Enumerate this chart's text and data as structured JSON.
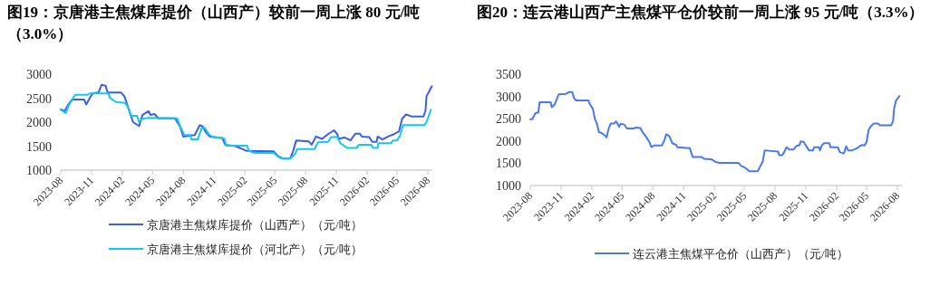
{
  "chart_data": [
    {
      "type": "line",
      "title": "图19：京唐港主焦煤库提价（山西产）较前一周上涨 80 元/吨（3.0%）",
      "legend": "bottom",
      "xlim": [
        "2023-08-01",
        "2026-08-15"
      ],
      "ylim": [
        1000,
        3000
      ],
      "xticks": [
        {
          "value": "2023-08",
          "label": "2023-08"
        },
        {
          "value": "2023-11",
          "label": "2023-11"
        },
        {
          "value": "2024-02",
          "label": "2024-02"
        },
        {
          "value": "2024-05",
          "label": "2024-05"
        },
        {
          "value": "2024-08",
          "label": "2024-08"
        },
        {
          "value": "2024-11",
          "label": "2024-11"
        },
        {
          "value": "2025-02",
          "label": "2025-02"
        },
        {
          "value": "2025-05",
          "label": "2025-05"
        },
        {
          "value": "2025-08",
          "label": "2025-08"
        },
        {
          "value": "2025-11",
          "label": "2025-11"
        },
        {
          "value": "2026-02",
          "label": "2026-02"
        },
        {
          "value": "2026-05",
          "label": "2026-05"
        },
        {
          "value": "2026-08",
          "label": "2026-08"
        }
      ],
      "yticks": [
        1000,
        1500,
        2000,
        2500,
        3000
      ],
      "series": [
        {
          "name": "京唐港主焦煤库提价（山西产）（元/吨）",
          "color": "#3a5cf0",
          "x": [
            "2023-08-01",
            "2023-08-13",
            "2023-08-22",
            "2023-09-04",
            "2023-10-10",
            "2023-10-16",
            "2023-10-25",
            "2023-11-04",
            "2023-11-22",
            "2023-12-01",
            "2023-12-13",
            "2023-12-19",
            "2024-01-28",
            "2024-02-07",
            "2024-02-13",
            "2024-02-25",
            "2024-03-04",
            "2024-03-22",
            "2024-04-01",
            "2024-04-19",
            "2024-04-25",
            "2024-05-07",
            "2024-05-19",
            "2024-07-07",
            "2024-07-22",
            "2024-08-01",
            "2024-08-22",
            "2024-09-04",
            "2024-09-19",
            "2024-09-28",
            "2024-10-07",
            "2024-10-19",
            "2024-11-25",
            "2024-12-04",
            "2025-01-04",
            "2025-02-07",
            "2025-04-28",
            "2025-05-10",
            "2025-05-25",
            "2025-06-16",
            "2025-06-25",
            "2025-07-04",
            "2025-08-10",
            "2025-08-19",
            "2025-09-01",
            "2025-09-19",
            "2025-10-07",
            "2025-10-25",
            "2025-11-04",
            "2025-11-07",
            "2025-11-25",
            "2025-12-13",
            "2025-12-28",
            "2026-01-10",
            "2026-01-16",
            "2026-02-07",
            "2026-02-16",
            "2026-03-01",
            "2026-03-04",
            "2026-03-19",
            "2026-04-04",
            "2026-04-22",
            "2026-05-07",
            "2026-05-16",
            "2026-05-28",
            "2026-06-13",
            "2026-07-19",
            "2026-07-25",
            "2026-07-28",
            "2026-08-07",
            "2026-08-13"
          ],
          "values": [
            2270,
            2230,
            2350,
            2470,
            2470,
            2370,
            2480,
            2600,
            2620,
            2780,
            2760,
            2620,
            2620,
            2540,
            2420,
            2160,
            2000,
            1920,
            2150,
            2230,
            2150,
            2170,
            2080,
            2080,
            1910,
            1700,
            1720,
            1730,
            1940,
            1910,
            1790,
            1700,
            1670,
            1530,
            1500,
            1400,
            1390,
            1300,
            1240,
            1240,
            1400,
            1620,
            1600,
            1530,
            1700,
            1650,
            1750,
            1830,
            1750,
            1650,
            1680,
            1620,
            1760,
            1760,
            1700,
            1690,
            1590,
            1590,
            1700,
            1640,
            1700,
            1750,
            1810,
            2070,
            2160,
            2120,
            2120,
            2240,
            2540,
            2670,
            2750
          ]
        },
        {
          "name": "京唐港主焦煤库提价（河北产）（元/吨）",
          "color": "#12c8f2",
          "x": [
            "2023-08-01",
            "2023-08-16",
            "2023-08-25",
            "2023-09-04",
            "2023-09-13",
            "2023-10-19",
            "2023-10-28",
            "2023-12-22",
            "2023-12-25",
            "2024-01-13",
            "2024-02-10",
            "2024-02-19",
            "2024-02-28",
            "2024-03-16",
            "2024-03-22",
            "2024-04-01",
            "2024-04-19",
            "2024-07-13",
            "2024-07-25",
            "2024-08-04",
            "2024-08-22",
            "2024-08-25",
            "2024-09-13",
            "2024-09-25",
            "2024-10-04",
            "2024-10-16",
            "2024-10-25",
            "2024-12-01",
            "2024-12-07",
            "2025-02-07",
            "2025-02-13",
            "2025-02-28",
            "2025-04-28",
            "2025-05-07",
            "2025-05-22",
            "2025-06-16",
            "2025-07-01",
            "2025-07-07",
            "2025-08-28",
            "2025-09-07",
            "2025-10-07",
            "2025-10-16",
            "2025-11-04",
            "2025-11-13",
            "2025-12-04",
            "2026-01-01",
            "2026-01-07",
            "2026-02-13",
            "2026-02-19",
            "2026-03-04",
            "2026-03-06",
            "2026-04-13",
            "2026-04-19",
            "2026-05-01",
            "2026-05-10",
            "2026-05-19",
            "2026-07-22",
            "2026-07-28",
            "2026-08-10"
          ],
          "values": [
            2260,
            2190,
            2350,
            2470,
            2570,
            2570,
            2600,
            2600,
            2510,
            2420,
            2400,
            2290,
            2130,
            2130,
            2000,
            2070,
            2090,
            2080,
            1880,
            1730,
            1730,
            1640,
            1640,
            1880,
            1880,
            1750,
            1700,
            1660,
            1510,
            1510,
            1400,
            1360,
            1360,
            1300,
            1240,
            1240,
            1340,
            1440,
            1440,
            1580,
            1590,
            1690,
            1690,
            1560,
            1460,
            1460,
            1530,
            1530,
            1460,
            1460,
            1560,
            1560,
            1620,
            1620,
            1720,
            1940,
            1940,
            2000,
            2260
          ]
        }
      ]
    },
    {
      "type": "line",
      "title": "图20：连云港山西产主焦煤平仓价较前一周上涨 95 元/吨（3.3%）",
      "legend": "bottom",
      "xlim": [
        "2023-08-01",
        "2026-08-15"
      ],
      "ylim": [
        1000,
        3500
      ],
      "xticks": [
        {
          "value": "2023-08",
          "label": "2023-08"
        },
        {
          "value": "2023-11",
          "label": "2023-11"
        },
        {
          "value": "2024-02",
          "label": "2024-02"
        },
        {
          "value": "2024-05",
          "label": "2024-05"
        },
        {
          "value": "2024-08",
          "label": "2024-08"
        },
        {
          "value": "2024-11",
          "label": "2024-11"
        },
        {
          "value": "2025-02",
          "label": "2025-02"
        },
        {
          "value": "2025-05",
          "label": "2025-05"
        },
        {
          "value": "2025-08",
          "label": "2025-08"
        },
        {
          "value": "2025-11",
          "label": "2025-11"
        },
        {
          "value": "2026-02",
          "label": "2026-02"
        },
        {
          "value": "2026-05",
          "label": "2026-05"
        },
        {
          "value": "2026-08",
          "label": "2026-08"
        }
      ],
      "yticks": [
        1000,
        1500,
        2000,
        2500,
        3000,
        3500
      ],
      "series": [
        {
          "name": "连云港主焦煤平仓价（山西产）（元/吨）",
          "color": "#4a78f5",
          "x": [
            "2023-08-01",
            "2023-08-07",
            "2023-08-16",
            "2023-08-25",
            "2023-08-29",
            "2023-10-01",
            "2023-10-04",
            "2023-10-13",
            "2023-10-19",
            "2023-10-25",
            "2023-11-16",
            "2023-11-25",
            "2023-12-04",
            "2023-12-10",
            "2023-12-16",
            "2024-01-22",
            "2024-01-25",
            "2024-02-04",
            "2024-02-10",
            "2024-02-16",
            "2024-02-22",
            "2024-03-01",
            "2024-03-10",
            "2024-03-16",
            "2024-03-22",
            "2024-03-28",
            "2024-04-07",
            "2024-04-13",
            "2024-04-19",
            "2024-04-22",
            "2024-04-28",
            "2024-05-07",
            "2024-05-16",
            "2024-06-04",
            "2024-06-10",
            "2024-06-25",
            "2024-07-01",
            "2024-07-13",
            "2024-07-22",
            "2024-07-28",
            "2024-08-04",
            "2024-08-28",
            "2024-09-04",
            "2024-09-10",
            "2024-09-19",
            "2024-09-28",
            "2024-10-10",
            "2024-10-13",
            "2024-11-19",
            "2024-11-28",
            "2024-12-25",
            "2025-01-01",
            "2025-01-22",
            "2025-02-04",
            "2025-02-16",
            "2025-04-13",
            "2025-04-22",
            "2025-05-01",
            "2025-05-16",
            "2025-06-10",
            "2025-06-16",
            "2025-06-25",
            "2025-07-01",
            "2025-07-13",
            "2025-08-10",
            "2025-08-13",
            "2025-08-22",
            "2025-08-28",
            "2025-09-04",
            "2025-09-13",
            "2025-09-25",
            "2025-10-04",
            "2025-10-13",
            "2025-10-16",
            "2025-10-25",
            "2025-11-04",
            "2025-11-10",
            "2025-11-22",
            "2025-11-25",
            "2025-12-10",
            "2025-12-13",
            "2025-12-19",
            "2025-12-25",
            "2026-01-10",
            "2026-01-13",
            "2026-02-04",
            "2026-02-10",
            "2026-02-22",
            "2026-02-25",
            "2026-03-01",
            "2026-03-07",
            "2026-03-19",
            "2026-04-01",
            "2026-04-16",
            "2026-04-25",
            "2026-05-01",
            "2026-05-07",
            "2026-05-13",
            "2026-05-22",
            "2026-06-04",
            "2026-06-10",
            "2026-07-13",
            "2026-07-19",
            "2026-07-22",
            "2026-07-28",
            "2026-08-07"
          ],
          "values": [
            2490,
            2490,
            2620,
            2640,
            2870,
            2870,
            2760,
            2820,
            2940,
            3050,
            3060,
            3100,
            3100,
            2960,
            2910,
            2910,
            2840,
            2720,
            2490,
            2390,
            2200,
            2180,
            2130,
            2080,
            2280,
            2390,
            2390,
            2440,
            2370,
            2320,
            2390,
            2370,
            2280,
            2280,
            2300,
            2290,
            2200,
            2080,
            1970,
            1860,
            1900,
            1900,
            2010,
            2150,
            2110,
            1950,
            1910,
            1860,
            1840,
            1640,
            1640,
            1600,
            1590,
            1530,
            1510,
            1510,
            1440,
            1410,
            1320,
            1320,
            1410,
            1540,
            1790,
            1780,
            1760,
            1680,
            1680,
            1750,
            1860,
            1810,
            1810,
            1890,
            1910,
            1990,
            1980,
            1860,
            1790,
            1790,
            1860,
            1860,
            1790,
            1910,
            1950,
            1950,
            1860,
            1860,
            1750,
            1720,
            1780,
            1880,
            1790,
            1790,
            1830,
            1910,
            1900,
            1980,
            2250,
            2320,
            2390,
            2390,
            2350,
            2350,
            2440,
            2720,
            2910,
            3010
          ]
        }
      ]
    }
  ]
}
